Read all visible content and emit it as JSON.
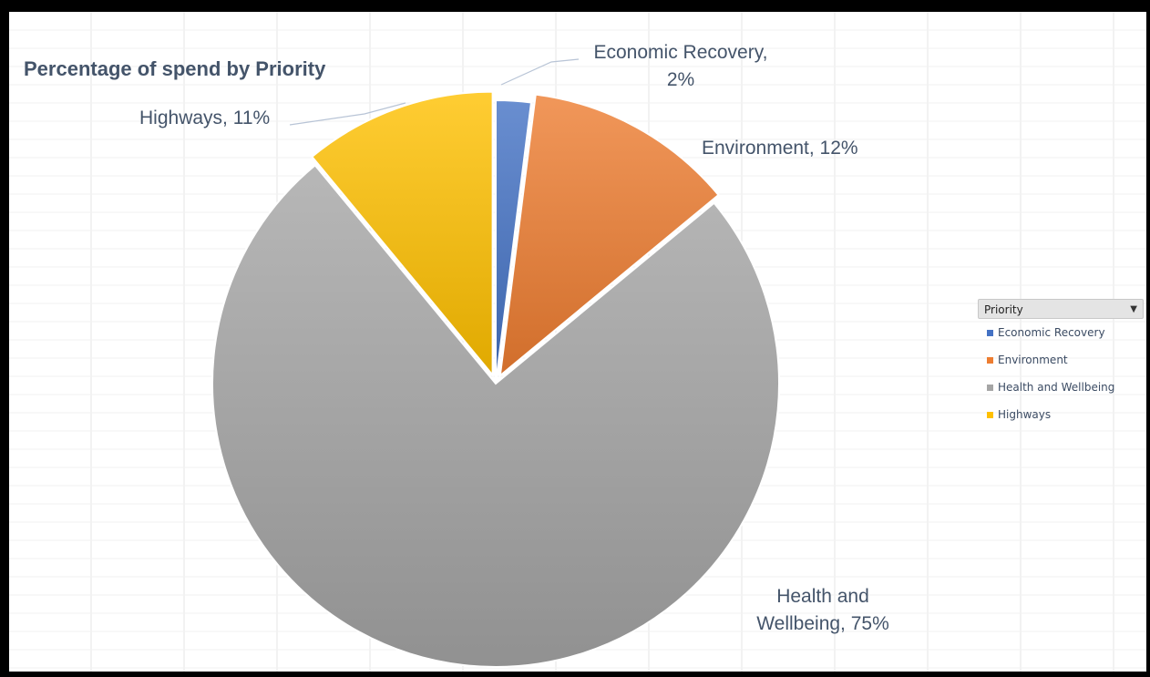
{
  "chart_data": {
    "type": "pie",
    "title": "Percentage of spend by Priority",
    "legend_title": "Priority",
    "legend_position": "right",
    "slices": [
      {
        "name": "Economic Recovery",
        "value": 2,
        "label_lines": [
          "Economic Recovery,",
          "2%"
        ],
        "color": "#4472c4",
        "exploded": false
      },
      {
        "name": "Environment",
        "value": 12,
        "label_lines": [
          "Environment, 12%"
        ],
        "color": "#ed7d31",
        "exploded": true
      },
      {
        "name": "Health and Wellbeing",
        "value": 75,
        "label_lines": [
          "Health and",
          "Wellbeing, 75%"
        ],
        "color": "#a5a5a5",
        "exploded": false
      },
      {
        "name": "Highways",
        "value": 11,
        "label_lines": [
          "Highways,  11%"
        ],
        "color": "#ffc000",
        "exploded": true
      }
    ]
  },
  "legend": {
    "title": "Priority",
    "dropdown_icon": "chevron-down-icon",
    "items": [
      {
        "label": "Economic Recovery",
        "color": "#4472c4"
      },
      {
        "label": "Environment",
        "color": "#ed7d31"
      },
      {
        "label": "Health and Wellbeing",
        "color": "#a5a5a5"
      },
      {
        "label": "Highways",
        "color": "#ffc000"
      }
    ]
  }
}
